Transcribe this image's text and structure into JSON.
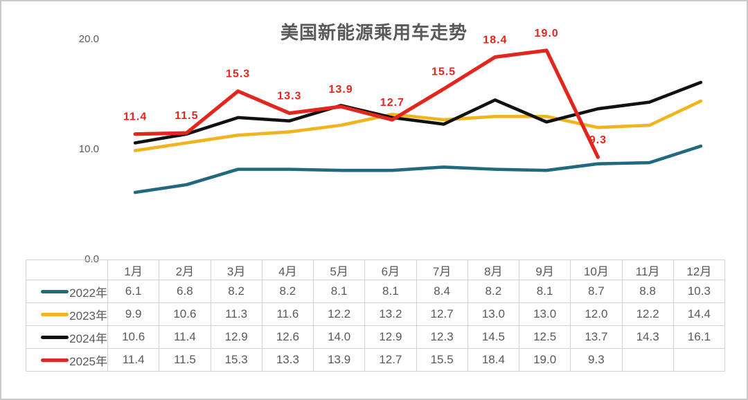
{
  "chart_data": {
    "type": "line",
    "title": "美国新能源乘用车走势",
    "xlabel": "",
    "ylabel": "",
    "ylim": [
      0,
      20
    ],
    "yticks": [
      "20.0",
      "10.0",
      "0.0"
    ],
    "grid": false,
    "legend_position": "table-row-headers",
    "categories": [
      "1月",
      "2月",
      "3月",
      "4月",
      "5月",
      "6月",
      "7月",
      "8月",
      "9月",
      "10月",
      "11月",
      "12月"
    ],
    "series": [
      {
        "name": "2022年",
        "color": "#20697f",
        "show_labels": false,
        "values": [
          "6.1",
          "6.8",
          "8.2",
          "8.2",
          "8.1",
          "8.1",
          "8.4",
          "8.2",
          "8.1",
          "8.7",
          "8.8",
          "10.3"
        ]
      },
      {
        "name": "2023年",
        "color": "#f0b51e",
        "show_labels": false,
        "values": [
          "9.9",
          "10.6",
          "11.3",
          "11.6",
          "12.2",
          "13.2",
          "12.7",
          "13.0",
          "13.0",
          "12.0",
          "12.2",
          "14.4"
        ]
      },
      {
        "name": "2024年",
        "color": "#111111",
        "show_labels": false,
        "values": [
          "10.6",
          "11.4",
          "12.9",
          "12.6",
          "14.0",
          "12.9",
          "12.3",
          "14.5",
          "12.5",
          "13.7",
          "14.3",
          "16.1"
        ]
      },
      {
        "name": "2025年",
        "color": "#e3261d",
        "show_labels": true,
        "label_color": "#e3261d",
        "values": [
          "11.4",
          "11.5",
          "15.3",
          "13.3",
          "13.9",
          "12.7",
          "15.5",
          "18.4",
          "19.0",
          "9.3",
          "",
          ""
        ]
      }
    ]
  },
  "colors": {
    "title_text": "#595959",
    "axis_text": "#595959",
    "table_text": "#595959",
    "table_border": "#d2d2d2",
    "frame_border": "#c9c9c9",
    "background": "#ffffff"
  }
}
